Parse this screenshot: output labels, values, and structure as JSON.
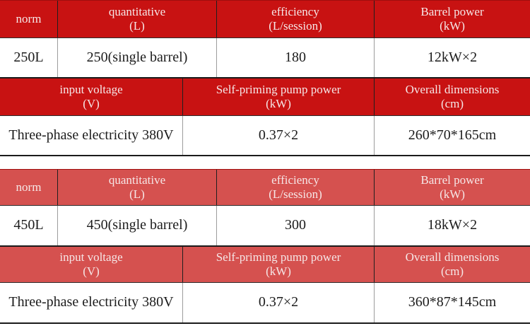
{
  "colors": {
    "header_red_dark": "#c81212",
    "header_red_light": "#d5514f",
    "header_text": "#f6e7e7",
    "data_text": "#1c1c1c",
    "header_separator": "#1f1f1f",
    "data_separator": "#9c9c9c",
    "row_border": "#1b1b1b",
    "background": "#ffffff"
  },
  "tables": [
    {
      "model": "250L",
      "spec_header": [
        {
          "line1": "norm",
          "line2": ""
        },
        {
          "line1": "quantitative",
          "line2": "(L)"
        },
        {
          "line1": "efficiency",
          "line2": "(L/session)"
        },
        {
          "line1": "Barrel power",
          "line2": "(kW)"
        }
      ],
      "spec_values": [
        "250L",
        "250(single barrel)",
        "180",
        "12kW×2"
      ],
      "detail_header": [
        {
          "line1": "input voltage",
          "line2": "(V)"
        },
        {
          "line1": "Self-priming pump power",
          "line2": "(kW)"
        },
        {
          "line1": "Overall dimensions",
          "line2": "(cm)"
        }
      ],
      "detail_values": [
        "Three-phase electricity 380V",
        "0.37×2",
        "260*70*165cm"
      ]
    },
    {
      "model": "450L",
      "spec_header": [
        {
          "line1": "norm",
          "line2": ""
        },
        {
          "line1": "quantitative",
          "line2": "(L)"
        },
        {
          "line1": "efficiency",
          "line2": "(L/session)"
        },
        {
          "line1": "Barrel power",
          "line2": "(kW)"
        }
      ],
      "spec_values": [
        "450L",
        "450(single barrel)",
        "300",
        "18kW×2"
      ],
      "detail_header": [
        {
          "line1": "input voltage",
          "line2": "(V)"
        },
        {
          "line1": "Self-priming pump power",
          "line2": "(kW)"
        },
        {
          "line1": "Overall dimensions",
          "line2": "(cm)"
        }
      ],
      "detail_values": [
        "Three-phase electricity 380V",
        "0.37×2",
        "360*87*145cm"
      ]
    }
  ]
}
